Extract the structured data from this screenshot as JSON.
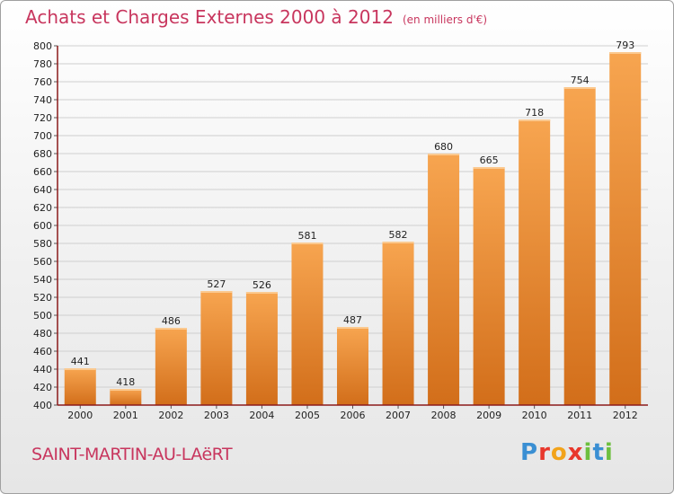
{
  "title": {
    "main": "Achats et Charges Externes 2000 à 2012",
    "unit": "(en milliers d'€)"
  },
  "place": "SAINT-MARTIN-AU-LAëRT",
  "logo": {
    "text": "Proxiti",
    "colors": [
      "#3a8fd3",
      "#e8372c",
      "#f2a31b",
      "#6dbf3f"
    ]
  },
  "chart_data": {
    "type": "bar",
    "categories": [
      "2000",
      "2001",
      "2002",
      "2003",
      "2004",
      "2005",
      "2006",
      "2007",
      "2008",
      "2009",
      "2010",
      "2011",
      "2012"
    ],
    "values": [
      441,
      418,
      486,
      527,
      526,
      581,
      487,
      582,
      680,
      665,
      718,
      754,
      793
    ],
    "ylim": [
      400,
      800
    ],
    "ytick_step": 20,
    "grid": true,
    "bar_color_top": "#f7a550",
    "bar_color_bottom": "#d26e1a",
    "axis_color": "#8b1a1a"
  }
}
